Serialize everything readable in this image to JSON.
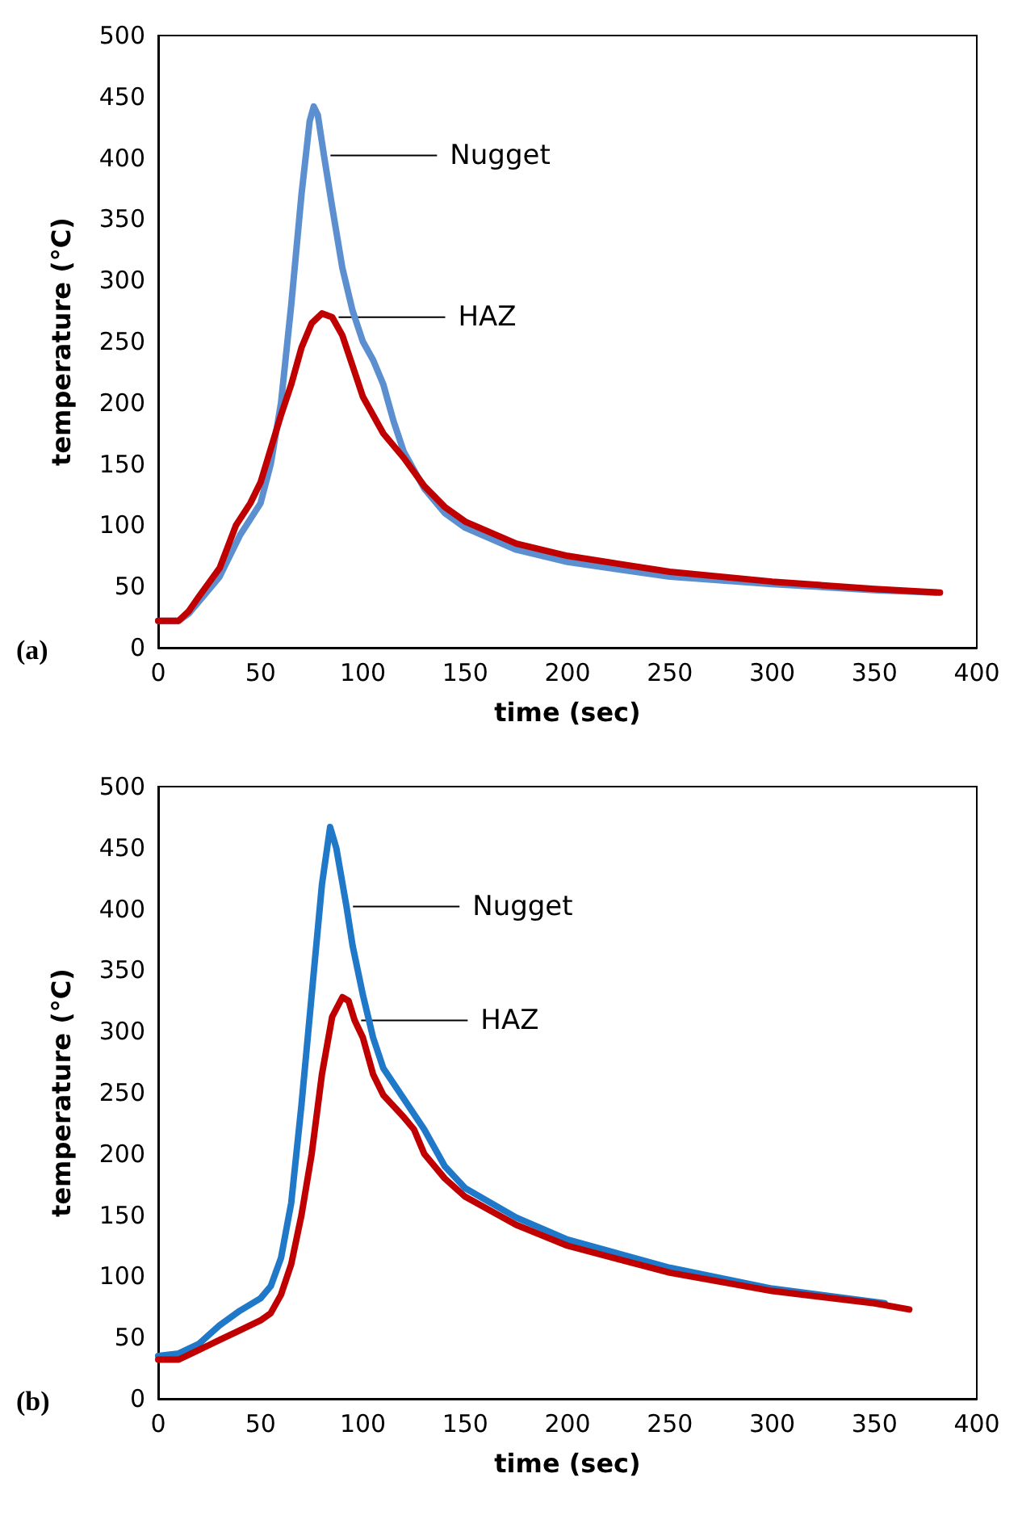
{
  "chart_data": [
    {
      "type": "line",
      "xlabel": "time (sec)",
      "ylabel": "temperature (°C)",
      "xlim": [
        0,
        400
      ],
      "ylim": [
        0,
        500
      ],
      "xticks": [
        0,
        50,
        100,
        150,
        200,
        250,
        300,
        350,
        400
      ],
      "yticks": [
        0,
        50,
        100,
        150,
        200,
        250,
        300,
        350,
        400,
        450,
        500
      ],
      "marker": "none",
      "annotations": [
        "(a)",
        {
          "text": "Nugget",
          "x": 81,
          "y": 402
        },
        {
          "text": "HAZ",
          "x": 85,
          "y": 270
        }
      ],
      "series": [
        {
          "color": "#5b8fd0",
          "x": [
            0,
            10,
            15,
            20,
            30,
            40,
            45,
            50,
            55,
            60,
            65,
            70,
            74,
            76,
            78,
            81,
            85,
            90,
            95,
            100,
            105,
            110,
            115,
            120,
            130,
            140,
            150,
            175,
            200,
            250,
            300,
            350,
            380
          ],
          "values": [
            22,
            22,
            28,
            38,
            58,
            92,
            105,
            118,
            150,
            200,
            280,
            370,
            430,
            442,
            435,
            402,
            360,
            310,
            275,
            250,
            235,
            215,
            185,
            160,
            130,
            110,
            98,
            80,
            70,
            58,
            52,
            47,
            45
          ]
        },
        {
          "color": "#c00000",
          "x": [
            0,
            10,
            15,
            20,
            30,
            38,
            45,
            50,
            60,
            65,
            70,
            75,
            80,
            85,
            90,
            95,
            100,
            110,
            120,
            130,
            140,
            150,
            175,
            200,
            250,
            300,
            350,
            382
          ],
          "values": [
            22,
            22,
            30,
            42,
            65,
            100,
            118,
            135,
            190,
            215,
            245,
            265,
            273,
            270,
            255,
            230,
            205,
            175,
            155,
            132,
            115,
            103,
            85,
            75,
            62,
            54,
            48,
            45
          ]
        }
      ]
    },
    {
      "type": "line",
      "xlabel": "time (sec)",
      "ylabel": "temperature (°C)",
      "xlim": [
        0,
        400
      ],
      "ylim": [
        0,
        500
      ],
      "xticks": [
        0,
        50,
        100,
        150,
        200,
        250,
        300,
        350,
        400
      ],
      "yticks": [
        0,
        50,
        100,
        150,
        200,
        250,
        300,
        350,
        400,
        450,
        500
      ],
      "marker": "none",
      "annotations": [
        "(b)",
        {
          "text": "Nugget",
          "x": 92,
          "y": 402
        },
        {
          "text": "HAZ",
          "x": 96,
          "y": 309
        }
      ],
      "series": [
        {
          "color": "#1f78c8",
          "x": [
            0,
            10,
            20,
            30,
            40,
            50,
            55,
            60,
            65,
            70,
            75,
            80,
            84,
            87,
            92,
            95,
            100,
            105,
            110,
            120,
            130,
            135,
            140,
            150,
            175,
            200,
            250,
            300,
            355
          ],
          "values": [
            35,
            37,
            45,
            60,
            72,
            82,
            92,
            115,
            160,
            240,
            330,
            420,
            467,
            450,
            402,
            370,
            330,
            295,
            270,
            245,
            220,
            205,
            190,
            172,
            148,
            130,
            107,
            90,
            78
          ]
        },
        {
          "color": "#c00000",
          "x": [
            0,
            10,
            20,
            30,
            40,
            50,
            55,
            60,
            65,
            70,
            75,
            80,
            85,
            90,
            93,
            96,
            100,
            105,
            110,
            120,
            125,
            130,
            140,
            150,
            175,
            200,
            250,
            300,
            350,
            367
          ],
          "values": [
            32,
            32,
            40,
            48,
            56,
            64,
            70,
            85,
            110,
            150,
            200,
            265,
            312,
            328,
            325,
            309,
            295,
            265,
            248,
            230,
            220,
            200,
            180,
            165,
            142,
            125,
            103,
            88,
            78,
            73
          ]
        }
      ]
    }
  ]
}
